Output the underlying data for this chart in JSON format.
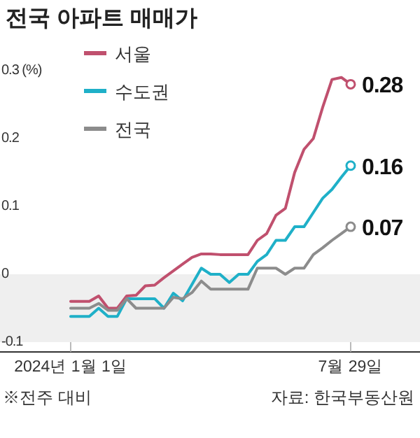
{
  "chart_data": {
    "type": "line",
    "title": "전국 아파트 매매가",
    "x": [
      "2024-01-01",
      "2024-01-08",
      "2024-01-15",
      "2024-01-22",
      "2024-01-29",
      "2024-02-05",
      "2024-02-12",
      "2024-02-19",
      "2024-02-26",
      "2024-03-04",
      "2024-03-11",
      "2024-03-18",
      "2024-03-25",
      "2024-04-01",
      "2024-04-08",
      "2024-04-15",
      "2024-04-22",
      "2024-04-29",
      "2024-05-06",
      "2024-05-13",
      "2024-05-20",
      "2024-05-27",
      "2024-06-03",
      "2024-06-10",
      "2024-06-17",
      "2024-06-24",
      "2024-07-01",
      "2024-07-08",
      "2024-07-15",
      "2024-07-22",
      "2024-07-29"
    ],
    "series": [
      {
        "name": "서울",
        "color": "#c0506e",
        "values": [
          -0.04,
          -0.04,
          -0.04,
          -0.032,
          -0.05,
          -0.05,
          -0.032,
          -0.031,
          -0.017,
          -0.016,
          -0.005,
          0.005,
          0.015,
          0.025,
          0.03,
          0.03,
          0.029,
          0.029,
          0.029,
          0.029,
          0.05,
          0.06,
          0.087,
          0.097,
          0.15,
          0.184,
          0.2,
          0.246,
          0.287,
          0.29,
          0.28
        ],
        "value_labels": [
          null,
          null,
          null,
          null,
          null,
          null,
          null,
          null,
          null,
          null,
          null,
          null,
          null,
          null,
          null,
          null,
          null,
          null,
          null,
          null,
          null,
          null,
          null,
          null,
          null,
          null,
          null,
          null,
          null,
          null,
          "0.28"
        ]
      },
      {
        "name": "수도권",
        "color": "#1fb0c8",
        "values": [
          -0.062,
          -0.062,
          -0.062,
          -0.05,
          -0.062,
          -0.062,
          -0.036,
          -0.036,
          -0.036,
          -0.036,
          -0.05,
          -0.028,
          -0.039,
          -0.015,
          0.009,
          0.0,
          0.0,
          -0.012,
          0.0,
          0.0,
          0.019,
          0.029,
          0.05,
          0.05,
          0.07,
          0.07,
          0.091,
          0.112,
          0.125,
          0.143,
          0.16
        ],
        "value_labels": [
          null,
          null,
          null,
          null,
          null,
          null,
          null,
          null,
          null,
          null,
          null,
          null,
          null,
          null,
          null,
          null,
          null,
          null,
          null,
          null,
          null,
          null,
          null,
          null,
          null,
          null,
          null,
          null,
          null,
          null,
          "0.16"
        ]
      },
      {
        "name": "전국",
        "color": "#8c8c8c",
        "values": [
          -0.05,
          -0.05,
          -0.05,
          -0.043,
          -0.053,
          -0.053,
          -0.036,
          -0.05,
          -0.05,
          -0.05,
          -0.05,
          -0.034,
          -0.036,
          -0.027,
          -0.01,
          -0.022,
          -0.022,
          -0.022,
          -0.022,
          -0.022,
          0.009,
          0.009,
          0.009,
          0.0,
          0.009,
          0.009,
          0.029,
          0.039,
          0.05,
          0.06,
          0.07
        ],
        "value_labels": [
          null,
          null,
          null,
          null,
          null,
          null,
          null,
          null,
          null,
          null,
          null,
          null,
          null,
          null,
          null,
          null,
          null,
          null,
          null,
          null,
          null,
          null,
          null,
          null,
          null,
          null,
          null,
          null,
          null,
          null,
          "0.07"
        ]
      }
    ],
    "xlim": [
      "2023-11-09",
      "2024-09-19"
    ],
    "xticks": [
      {
        "value": "2024-01-01",
        "label": "2024년 1월 1일"
      },
      {
        "value": "2024-07-29",
        "label": "7월 29일"
      }
    ],
    "ylim": [
      -0.1,
      0.3
    ],
    "yticks": [
      {
        "value": 0.3,
        "label": "0.3 (%)"
      },
      0.2,
      0.1,
      0,
      {
        "value": -0.1,
        "label": "-0.1"
      }
    ],
    "bands": [
      {
        "axis": "y",
        "from": -0.1,
        "to": 0,
        "color": "#efefef"
      }
    ],
    "legend": "top left",
    "annotations": [
      "※전주 대비",
      "자료: 한국부동산원"
    ]
  }
}
